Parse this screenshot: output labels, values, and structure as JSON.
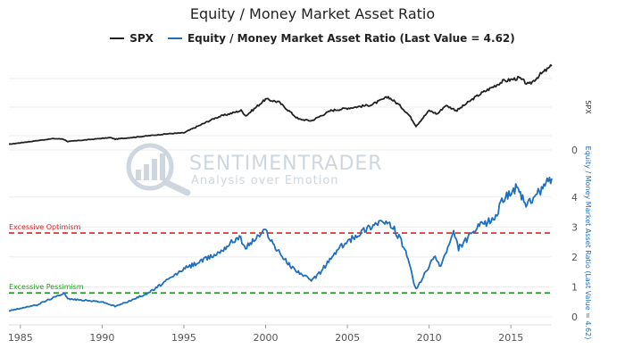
{
  "chart_data": {
    "type": "line",
    "title": "Equity / Money Market Asset Ratio",
    "x_ticks": [
      "1985",
      "1990",
      "1995",
      "2000",
      "2005",
      "2010",
      "2015"
    ],
    "x_range": [
      1984.3,
      2017.5
    ],
    "panels": [
      {
        "name": "upper",
        "axis_title": "SPX",
        "y_ticks": [
          "0"
        ],
        "grid": true
      },
      {
        "name": "lower",
        "axis_title": "Equity / Money Market Asset Ratio (Last Value = 4.62)",
        "ylim": [
          0,
          4.62
        ],
        "y_ticks": [
          "0",
          "1",
          "2",
          "3",
          "4"
        ],
        "grid": true
      }
    ],
    "series": [
      {
        "name": "SPX",
        "color": "#222222",
        "panel": "upper",
        "x": [
          1984.3,
          1987.0,
          1987.6,
          1987.9,
          1990.5,
          1990.8,
          1994.0,
          1995.0,
          1997.0,
          1998.5,
          1998.8,
          2000.0,
          2000.8,
          2002.0,
          2002.8,
          2004.0,
          2006.5,
          2007.5,
          2008.2,
          2008.8,
          2009.2,
          2010.0,
          2010.5,
          2011.0,
          2011.7,
          2013.0,
          2014.5,
          2015.5,
          2016.1,
          2016.8,
          2017.5
        ],
        "y": [
          165,
          330,
          320,
          245,
          360,
          315,
          470,
          500,
          950,
          1150,
          1000,
          1480,
          1400,
          900,
          850,
          1150,
          1320,
          1550,
          1300,
          1000,
          700,
          1150,
          1050,
          1300,
          1150,
          1600,
          2000,
          2100,
          1900,
          2200,
          2450
        ]
      },
      {
        "name": "Equity / Money Market Asset Ratio (Last Value = 4.62)",
        "color": "#1f6fbf",
        "panel": "lower",
        "x": [
          1984.3,
          1986.0,
          1987.7,
          1987.9,
          1990.0,
          1990.8,
          1992.0,
          1993.0,
          1995.0,
          1997.0,
          1998.4,
          1998.7,
          2000.0,
          2000.6,
          2001.5,
          2002.8,
          2003.2,
          2004.5,
          2006.0,
          2007.0,
          2007.8,
          2008.5,
          2009.2,
          2010.3,
          2010.7,
          2011.5,
          2011.8,
          2013.0,
          2014.0,
          2014.6,
          2015.3,
          2016.0,
          2016.6,
          2017.5
        ],
        "y": [
          0.2,
          0.4,
          0.8,
          0.6,
          0.5,
          0.35,
          0.6,
          0.85,
          1.6,
          2.1,
          2.7,
          2.3,
          2.9,
          2.3,
          1.7,
          1.2,
          1.4,
          2.3,
          2.9,
          3.2,
          3.0,
          2.3,
          0.9,
          2.0,
          1.7,
          2.8,
          2.3,
          3.0,
          3.3,
          4.0,
          4.3,
          3.7,
          4.1,
          4.62
        ]
      }
    ],
    "reference_lines": [
      {
        "label": "Excessive Optimism",
        "y": 2.8,
        "color": "#e02020",
        "style": "dashed"
      },
      {
        "label": "Excessive Pessimism",
        "y": 0.8,
        "color": "#1d9a1d",
        "style": "dashed"
      }
    ],
    "legend": {
      "position": "top-center"
    }
  },
  "watermark": {
    "name": "SENTIMENTRADER",
    "tagline": "Analysis over Emotion"
  }
}
